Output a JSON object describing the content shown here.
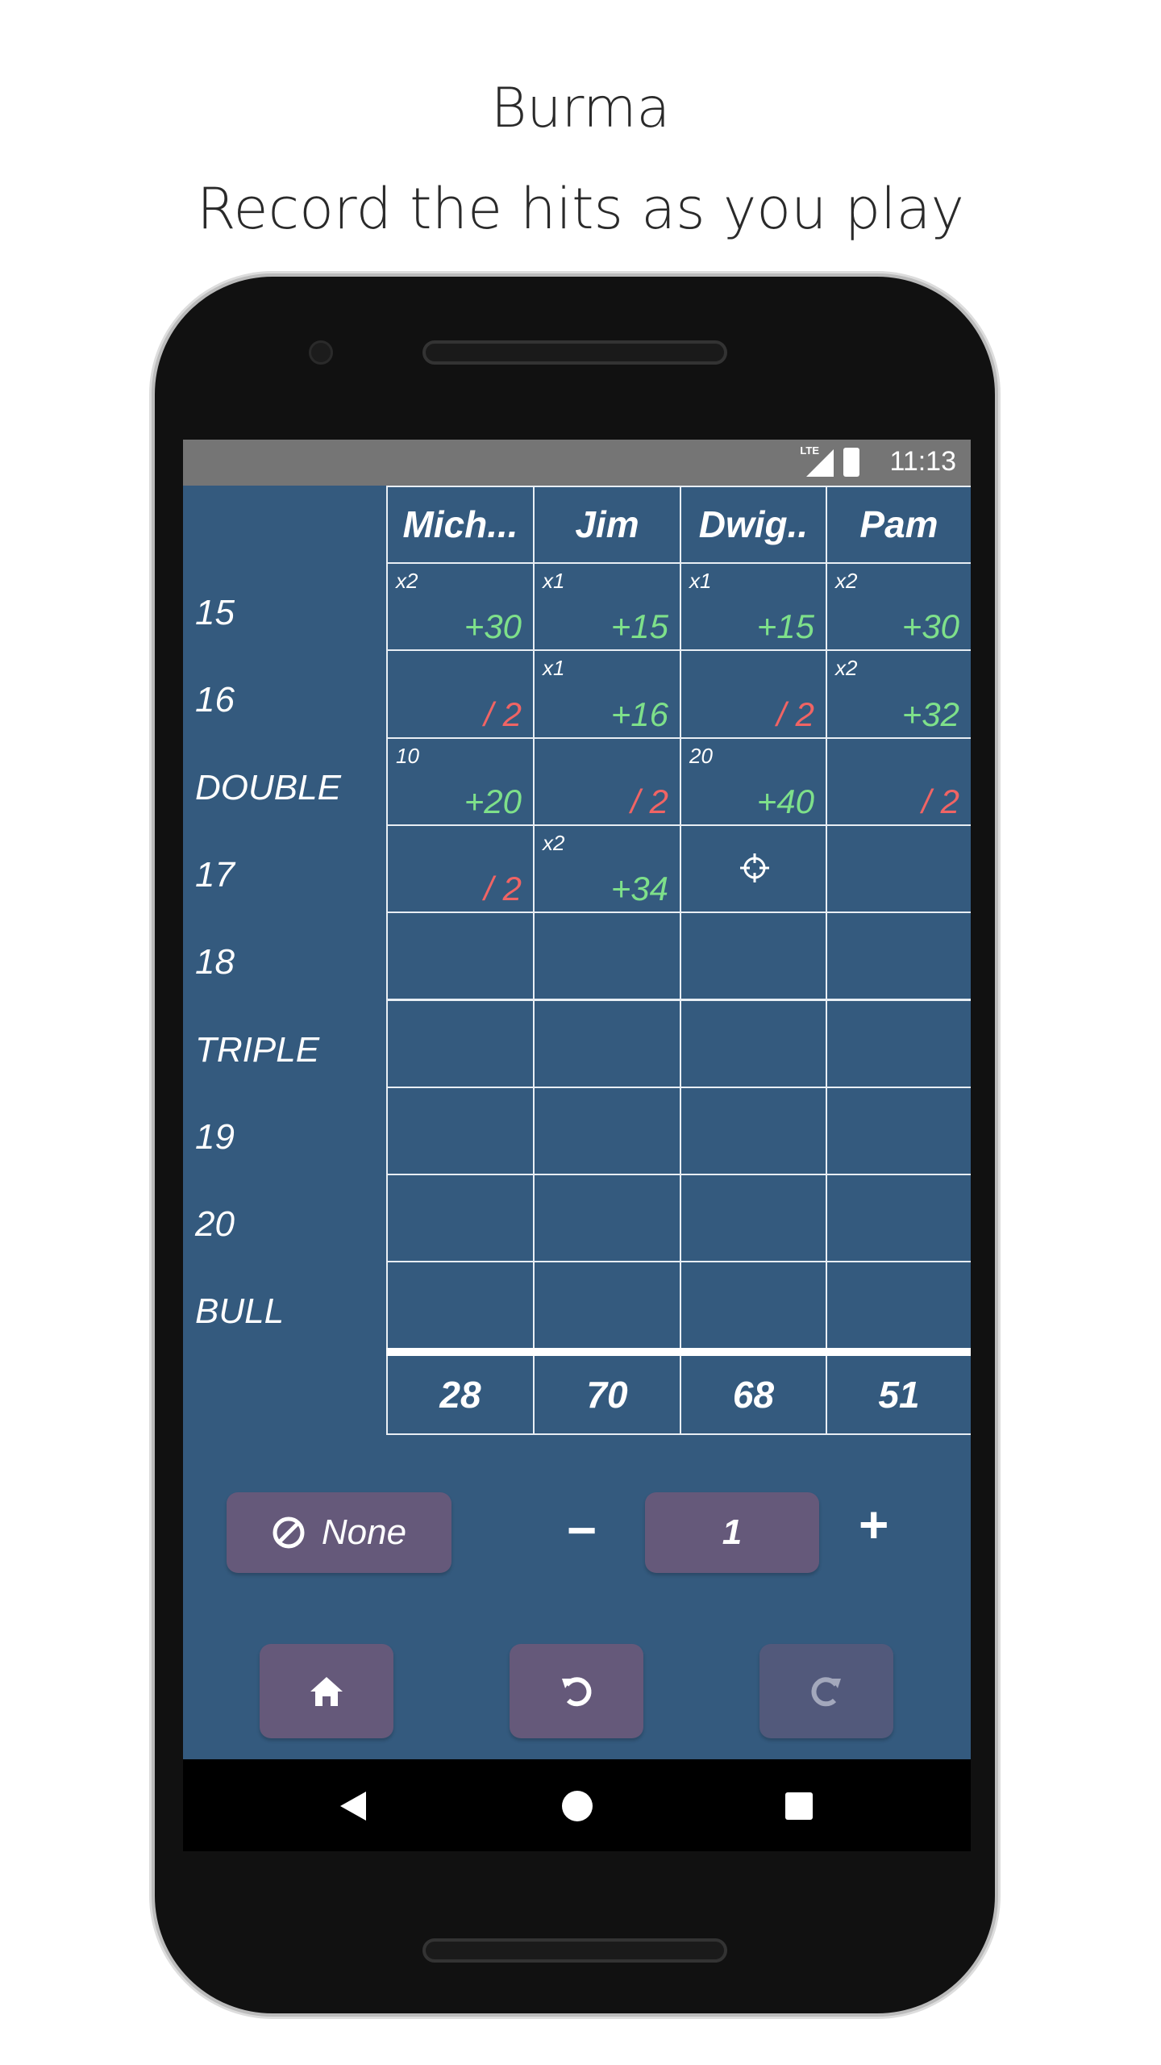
{
  "promo": {
    "title": "Burma",
    "subtitle": "Record the hits as you play"
  },
  "status": {
    "network": "LTE",
    "time": "11:13"
  },
  "players": [
    "Mich...",
    "Jim",
    "Dwig..",
    "Pam"
  ],
  "rows": [
    {
      "label": "15",
      "cells": [
        {
          "m": "x2",
          "s": "+30",
          "t": "pos"
        },
        {
          "m": "x1",
          "s": "+15",
          "t": "pos"
        },
        {
          "m": "x1",
          "s": "+15",
          "t": "pos"
        },
        {
          "m": "x2",
          "s": "+30",
          "t": "pos"
        }
      ]
    },
    {
      "label": "16",
      "cells": [
        {
          "m": "",
          "s": "/ 2",
          "t": "neg"
        },
        {
          "m": "x1",
          "s": "+16",
          "t": "pos"
        },
        {
          "m": "",
          "s": "/ 2",
          "t": "neg"
        },
        {
          "m": "x2",
          "s": "+32",
          "t": "pos"
        }
      ]
    },
    {
      "label": "DOUBLE",
      "cells": [
        {
          "m": "10",
          "s": "+20",
          "t": "pos"
        },
        {
          "m": "",
          "s": "/ 2",
          "t": "neg"
        },
        {
          "m": "20",
          "s": "+40",
          "t": "pos"
        },
        {
          "m": "",
          "s": "/ 2",
          "t": "neg"
        }
      ]
    },
    {
      "label": "17",
      "cells": [
        {
          "m": "",
          "s": "/ 2",
          "t": "neg"
        },
        {
          "m": "x2",
          "s": "+34",
          "t": "pos"
        },
        {
          "target": true
        },
        {}
      ]
    },
    {
      "label": "18",
      "cells": [
        {},
        {},
        {},
        {}
      ]
    },
    {
      "label": "TRIPLE",
      "cells": [
        {},
        {},
        {},
        {}
      ]
    },
    {
      "label": "19",
      "cells": [
        {},
        {},
        {},
        {}
      ]
    },
    {
      "label": "20",
      "cells": [
        {},
        {},
        {},
        {}
      ]
    },
    {
      "label": "BULL",
      "cells": [
        {},
        {},
        {},
        {}
      ]
    }
  ],
  "totals": [
    "28",
    "70",
    "68",
    "51"
  ],
  "controls": {
    "none_label": "None",
    "minus": "−",
    "count": "1",
    "plus": "+"
  },
  "icons": {
    "none": "ban-icon",
    "home": "home-icon",
    "undo": "undo-icon",
    "redo": "redo-icon",
    "target": "crosshair-icon"
  },
  "colors": {
    "background": "#345a7e",
    "button": "#65597a",
    "positive": "#7ee08a",
    "negative": "#f06464"
  }
}
